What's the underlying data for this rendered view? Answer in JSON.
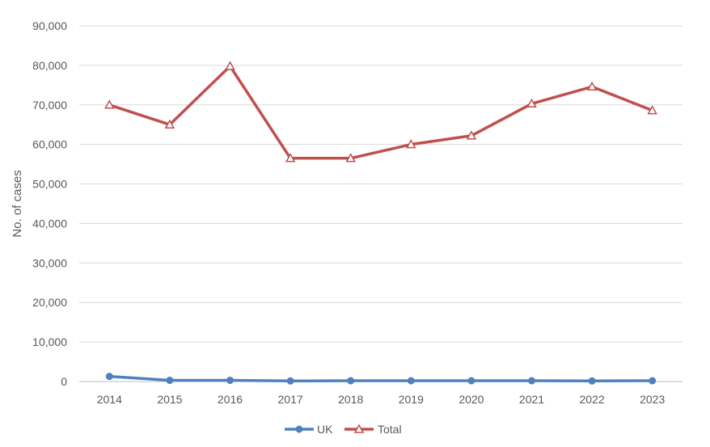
{
  "chart_data": {
    "type": "line",
    "categories": [
      "2014",
      "2015",
      "2016",
      "2017",
      "2018",
      "2019",
      "2020",
      "2021",
      "2022",
      "2023"
    ],
    "ylabel": "No. of cases",
    "ylim": [
      0,
      90000
    ],
    "yticks": [
      "0",
      "10,000",
      "20,000",
      "30,000",
      "40,000",
      "50,000",
      "60,000",
      "70,000",
      "80,000",
      "90,000"
    ],
    "grid": true,
    "legend_position": "bottom",
    "series": [
      {
        "name": "UK",
        "color": "#4F81BD",
        "marker": "circle",
        "values": [
          1300,
          300,
          300,
          150,
          200,
          200,
          200,
          200,
          150,
          200
        ]
      },
      {
        "name": "Total",
        "color": "#C0504D",
        "marker": "triangle",
        "values": [
          70000,
          65000,
          79800,
          56500,
          56500,
          60000,
          62200,
          70300,
          74600,
          68600
        ]
      }
    ]
  }
}
